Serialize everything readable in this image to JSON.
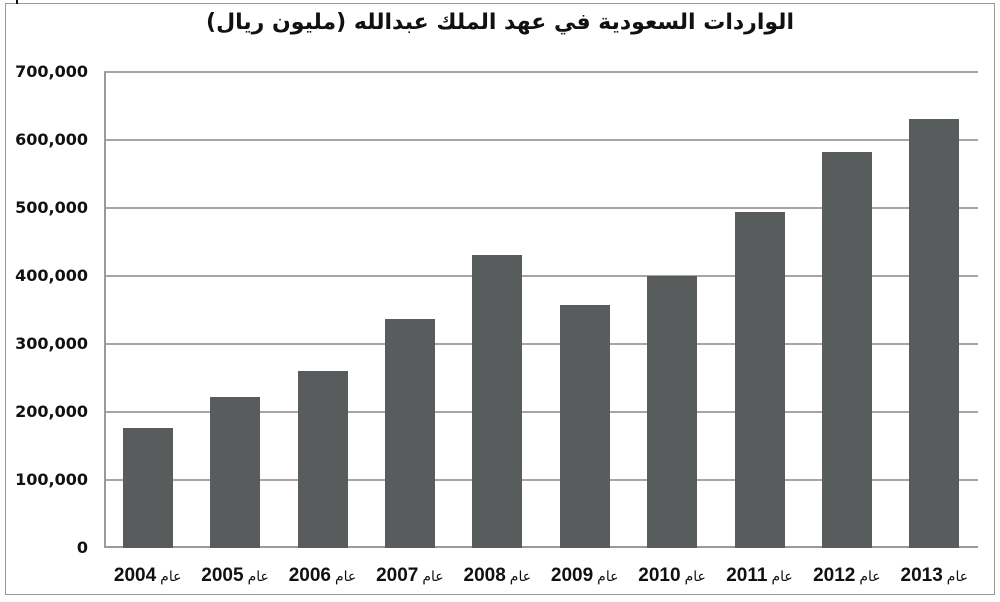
{
  "chart_data": {
    "type": "bar",
    "title": "الواردات السعودية في عهد الملك عبدالله (مليون ريال)",
    "xlabel": "",
    "ylabel": "",
    "categories": [
      "عام 2004",
      "عام 2005",
      "عام 2006",
      "عام 2007",
      "عام 2008",
      "عام 2009",
      "عام 2010",
      "عام 2011",
      "عام 2012",
      "عام 2013"
    ],
    "years": [
      "2004",
      "2005",
      "2006",
      "2007",
      "2008",
      "2009",
      "2010",
      "2011",
      "2012",
      "2013"
    ],
    "year_word": "عام",
    "values": [
      177000,
      222000,
      260000,
      337000,
      431000,
      358000,
      400000,
      494000,
      583000,
      631000
    ],
    "ylim": [
      0,
      700000
    ],
    "yticks": [
      "0",
      "100,000",
      "200,000",
      "300,000",
      "400,000",
      "500,000",
      "600,000",
      "700,000"
    ],
    "ytick_values": [
      0,
      100000,
      200000,
      300000,
      400000,
      500000,
      600000,
      700000
    ],
    "grid": true,
    "legend": null,
    "bar_color": "#595c5c",
    "grid_color": "#a9a4a2"
  }
}
